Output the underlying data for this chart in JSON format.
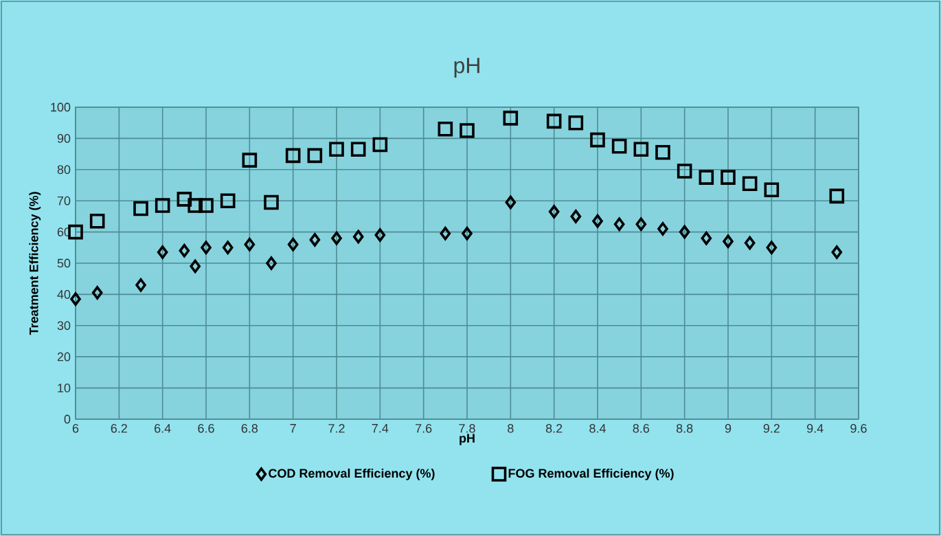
{
  "chart_data": {
    "type": "scatter",
    "title": "pH",
    "xlabel": "pH",
    "ylabel": "Treatment Efficiency (%)",
    "x": [
      6,
      6.1,
      6.3,
      6.4,
      6.5,
      6.55,
      6.6,
      6.7,
      6.8,
      6.9,
      7,
      7.1,
      7.2,
      7.3,
      7.4,
      7.7,
      7.8,
      8,
      8.2,
      8.3,
      8.4,
      8.5,
      8.6,
      8.7,
      8.8,
      8.9,
      9,
      9.1,
      9.2,
      9.5
    ],
    "series": [
      {
        "name": "COD Removal Efficiency (%)",
        "color": "#000000",
        "marker": "diamond",
        "values": [
          38.5,
          40.5,
          43,
          53.5,
          54,
          49,
          55,
          55,
          56,
          50,
          56,
          57.5,
          58,
          58.5,
          59,
          59.5,
          59.5,
          69.5,
          66.5,
          65,
          63.5,
          62.5,
          62.5,
          61,
          60,
          58,
          57,
          56.5,
          55,
          53.5
        ]
      },
      {
        "name": "FOG Removal Efficiency (%)",
        "color": "#000000",
        "marker": "square",
        "values": [
          60,
          63.5,
          67.5,
          68.5,
          70.5,
          68.5,
          68.5,
          70,
          83,
          69.5,
          84.5,
          84.5,
          86.5,
          86.5,
          88,
          93,
          92.5,
          96.5,
          95.5,
          95,
          89.5,
          87.5,
          86.5,
          85.5,
          79.5,
          77.5,
          77.5,
          75.5,
          73.5,
          71.5
        ]
      }
    ],
    "xlim": [
      6,
      9.6
    ],
    "xticks": [
      6,
      6.2,
      6.4,
      6.6,
      6.8,
      7,
      7.2,
      7.4,
      7.6,
      7.8,
      8,
      8.2,
      8.4,
      8.6,
      8.8,
      9,
      9.2,
      9.4,
      9.6
    ],
    "ylim": [
      0,
      100
    ],
    "yticks": [
      0,
      10,
      20,
      30,
      40,
      50,
      60,
      70,
      80,
      90,
      100
    ],
    "grid": true,
    "legend": "bottom"
  }
}
